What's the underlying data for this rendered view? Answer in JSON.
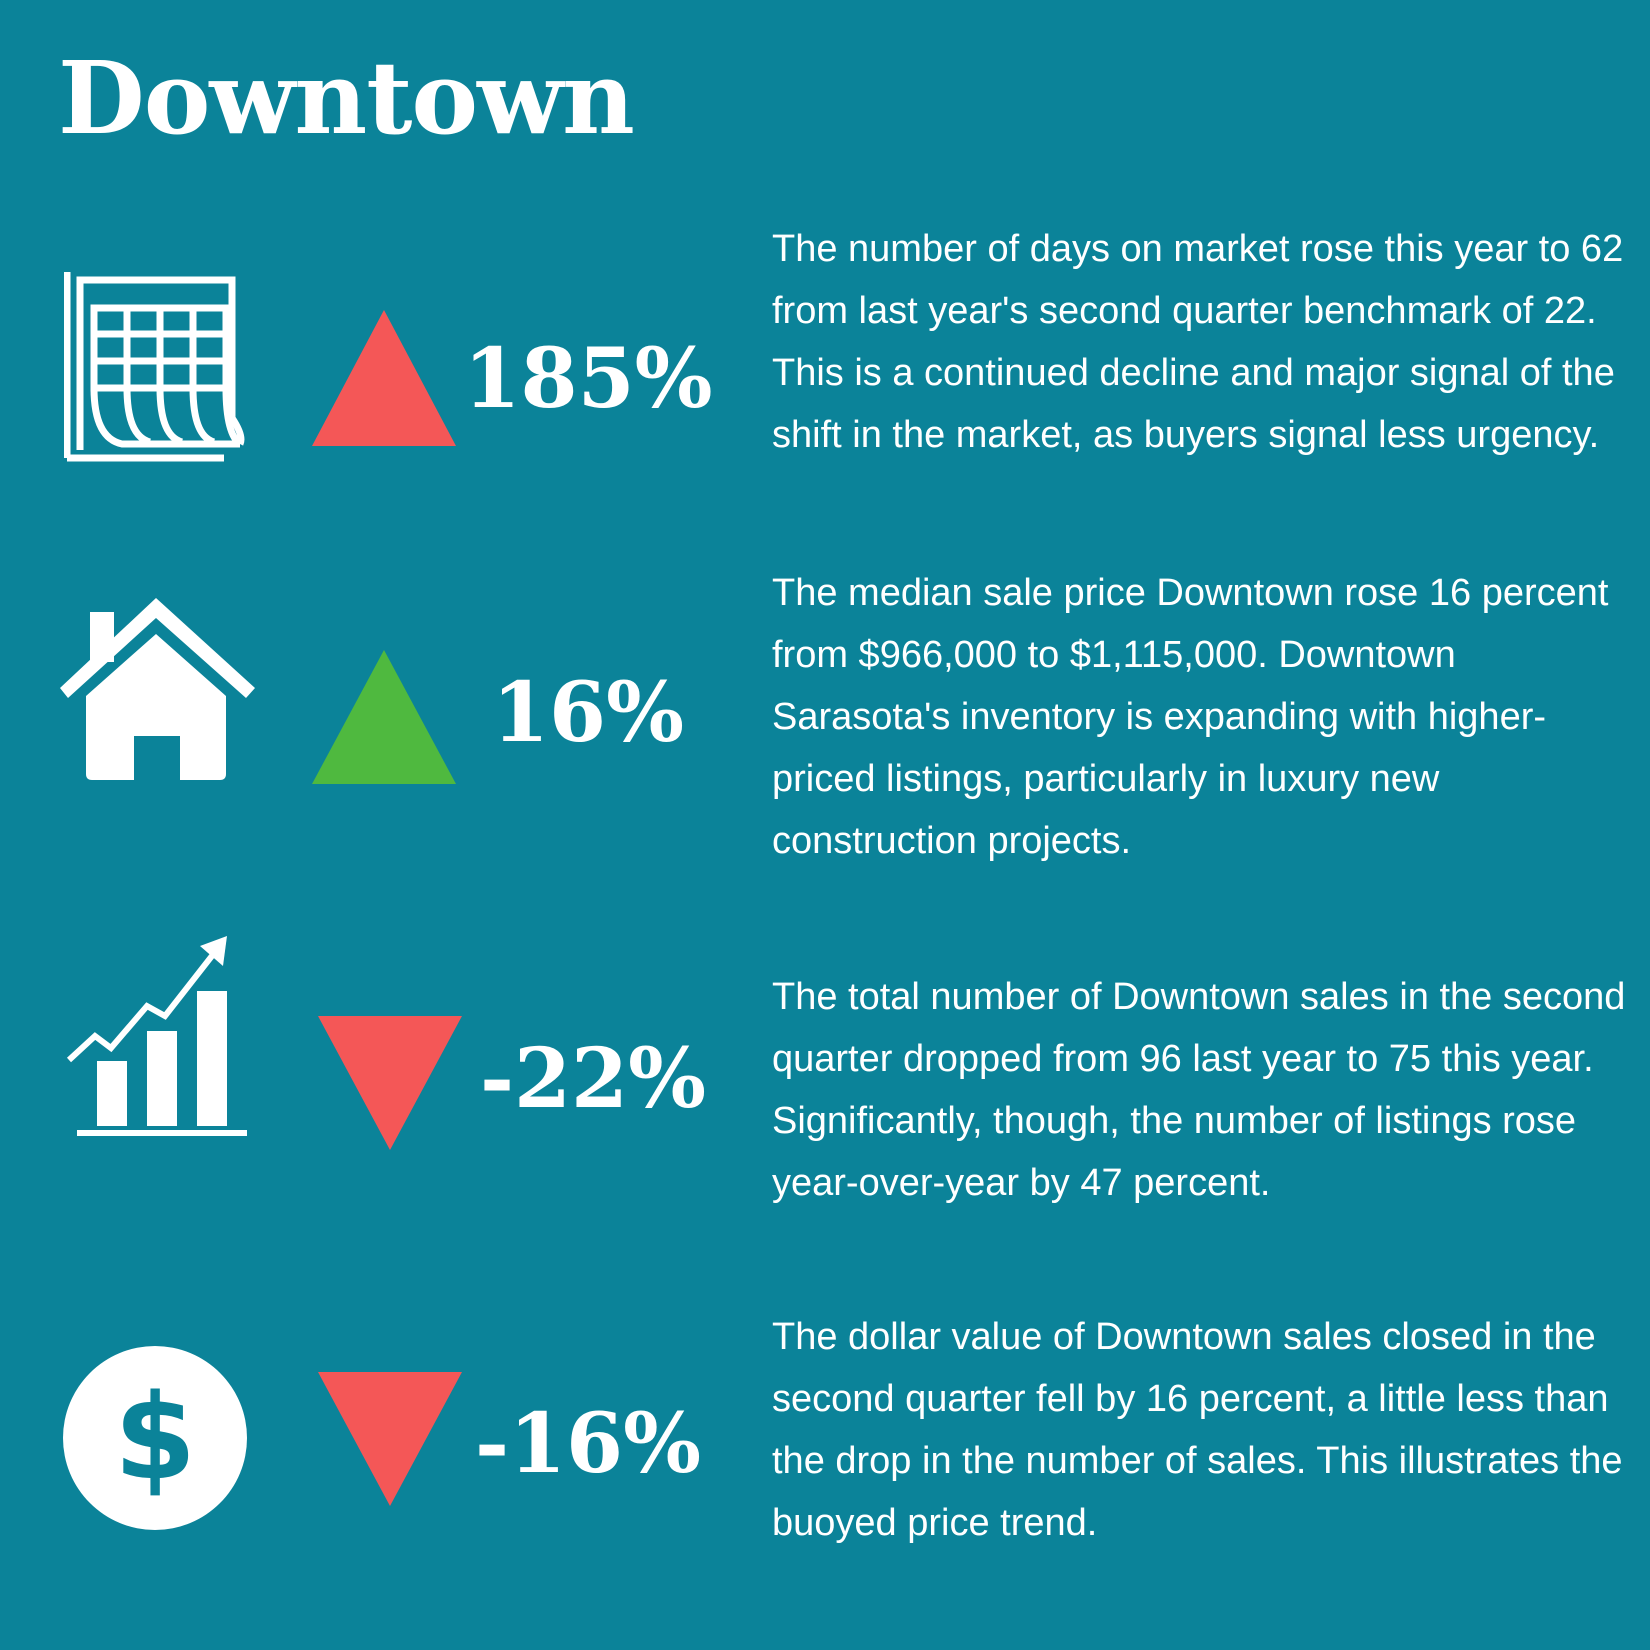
{
  "title": "Downtown",
  "colors": {
    "background": "#0b8399",
    "up_red": "#f45757",
    "up_green": "#4fb93f",
    "down_red": "#f45757",
    "text": "#ffffff"
  },
  "stats": [
    {
      "icon": "calendar-icon",
      "arrow": "up",
      "arrow_color": "#f45757",
      "value": "185%",
      "description": "The number of days on market rose this year to 62 from last year's second quarter benchmark of 22. This is a continued decline and major signal of the shift in the market, as buyers signal less urgency."
    },
    {
      "icon": "house-icon",
      "arrow": "up",
      "arrow_color": "#4fb93f",
      "value": "16%",
      "description": "The median sale price Downtown rose 16 percent from $966,000 to $1,115,000. Downtown Sarasota's inventory is expanding with higher-priced listings, particularly in luxury new construction projects."
    },
    {
      "icon": "growth-chart-icon",
      "arrow": "down",
      "arrow_color": "#f45757",
      "value": "-22%",
      "description": "The total number of Downtown sales in the second quarter dropped from 96 last year to 75 this year. Significantly, though, the number of listings rose year-over-year by 47 percent."
    },
    {
      "icon": "dollar-coin-icon",
      "arrow": "down",
      "arrow_color": "#f45757",
      "value": "-16%",
      "description": "The dollar value of Downtown sales closed in the second quarter fell by 16 percent, a little less than the drop in the number of sales. This illustrates the buoyed price trend."
    }
  ]
}
